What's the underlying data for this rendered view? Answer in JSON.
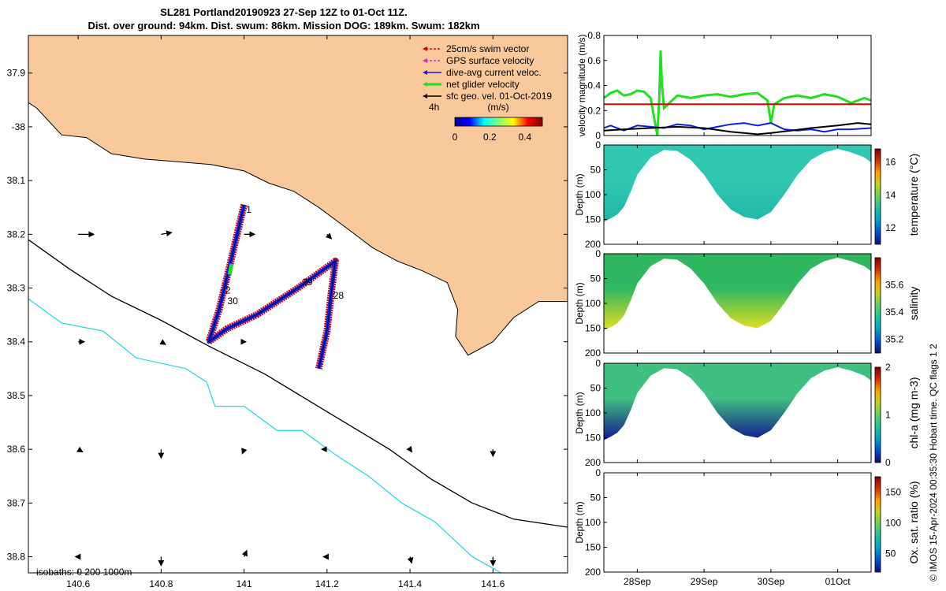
{
  "title": {
    "line1": "SL281 Portland20190923 27-Sep 12Z to 01-Oct 11Z.",
    "line2": "Dist. over ground: 94km. Dist. swum: 86km. Mission DOG: 189km. Swum: 182km"
  },
  "credit": "© IMOS 15-Apr-2024 00:35:30 Hobart time. QC flags 1  2",
  "colors": {
    "land": "#f9c99b",
    "swim": "#e00000",
    "gps": "#e020e0",
    "current": "#1020e0",
    "net": "#20e020",
    "sfc": "#000000",
    "isobath200": "#000000",
    "isobath1000": "#30d8e0"
  },
  "chart_data": [
    {
      "type": "scatter",
      "name": "map",
      "xlim": [
        140.48,
        141.78
      ],
      "ylim": [
        -38.83,
        -37.83
      ],
      "xticks": [
        140.6,
        140.8,
        141,
        141.2,
        141.4,
        141.6
      ],
      "xtick_labels": [
        "140.6",
        "140.8",
        "141",
        "141.2",
        "141.4",
        "141.6"
      ],
      "yticks": [
        -37.9,
        -38,
        -38.1,
        -38.2,
        -38.3,
        -38.4,
        -38.5,
        -38.6,
        -38.7,
        -38.8
      ],
      "ytick_labels": [
        "37.9",
        "-38",
        "38.1",
        "38.2",
        "38.3",
        "38.4",
        "38.5",
        "38.6",
        "38.7",
        "38.8"
      ],
      "legend": [
        "25cm/s swim vector",
        "GPS surface velocity",
        "dive-avg current veloc.",
        "net glider velocity",
        "sfc geo. vel. 01-Oct-2019"
      ],
      "legend_position": "top-right",
      "legend_time": "4h",
      "colorbar": {
        "label": "(m/s)",
        "ticks": [
          0,
          0.2,
          0.4
        ],
        "tick_labels": [
          "0",
          "0.2",
          "0.4"
        ],
        "range": [
          0,
          0.5
        ]
      },
      "isobath_label": "isobaths: 0   200  1000m",
      "track": [
        [
          141.0,
          -38.145
        ],
        [
          140.965,
          -38.26
        ],
        [
          140.94,
          -38.34
        ],
        [
          140.915,
          -38.4
        ],
        [
          140.96,
          -38.375
        ],
        [
          141.03,
          -38.35
        ],
        [
          141.13,
          -38.3
        ],
        [
          141.22,
          -38.25
        ],
        [
          141.21,
          -38.31
        ],
        [
          141.2,
          -38.38
        ],
        [
          141.18,
          -38.45
        ]
      ],
      "day_labels": [
        {
          "text": "1",
          "lon": 141.005,
          "lat": -38.16
        },
        {
          "text": "2",
          "lon": 140.955,
          "lat": -38.31
        },
        {
          "text": "30",
          "lon": 140.96,
          "lat": -38.33
        },
        {
          "text": "29",
          "lon": 141.14,
          "lat": -38.295
        },
        {
          "text": "28",
          "lon": 141.215,
          "lat": -38.32
        }
      ],
      "coast": [
        [
          140.48,
          -37.955
        ],
        [
          140.5,
          -37.965
        ],
        [
          140.56,
          -38.015
        ],
        [
          140.62,
          -38.02
        ],
        [
          140.68,
          -38.05
        ],
        [
          140.76,
          -38.06
        ],
        [
          140.84,
          -38.065
        ],
        [
          140.92,
          -38.07
        ],
        [
          141.0,
          -38.082
        ],
        [
          141.06,
          -38.105
        ],
        [
          141.12,
          -38.12
        ],
        [
          141.18,
          -38.15
        ],
        [
          141.25,
          -38.19
        ],
        [
          141.31,
          -38.225
        ],
        [
          141.37,
          -38.25
        ],
        [
          141.43,
          -38.268
        ],
        [
          141.49,
          -38.29
        ],
        [
          141.515,
          -38.34
        ],
        [
          141.51,
          -38.39
        ],
        [
          141.54,
          -38.425
        ],
        [
          141.6,
          -38.4
        ],
        [
          141.65,
          -38.355
        ],
        [
          141.71,
          -38.325
        ],
        [
          141.78,
          -38.325
        ]
      ],
      "isobath200": [
        [
          140.48,
          -38.21
        ],
        [
          140.58,
          -38.265
        ],
        [
          140.68,
          -38.315
        ],
        [
          140.8,
          -38.36
        ],
        [
          140.92,
          -38.41
        ],
        [
          141.05,
          -38.46
        ],
        [
          141.2,
          -38.53
        ],
        [
          141.35,
          -38.6
        ],
        [
          141.45,
          -38.655
        ],
        [
          141.55,
          -38.7
        ],
        [
          141.65,
          -38.73
        ],
        [
          141.78,
          -38.745
        ]
      ],
      "isobath1000": [
        [
          140.48,
          -38.32
        ],
        [
          140.56,
          -38.365
        ],
        [
          140.66,
          -38.38
        ],
        [
          140.74,
          -38.43
        ],
        [
          140.86,
          -38.45
        ],
        [
          140.91,
          -38.475
        ],
        [
          140.93,
          -38.52
        ],
        [
          141.0,
          -38.52
        ],
        [
          141.08,
          -38.565
        ],
        [
          141.14,
          -38.565
        ],
        [
          141.22,
          -38.61
        ],
        [
          141.3,
          -38.65
        ],
        [
          141.38,
          -38.7
        ],
        [
          141.46,
          -38.735
        ],
        [
          141.55,
          -38.8
        ],
        [
          141.62,
          -38.83
        ]
      ],
      "sfc_vectors": [
        {
          "lon": 140.6,
          "lat": -38.2,
          "u": 0.18,
          "v": 0.0
        },
        {
          "lon": 140.8,
          "lat": -38.2,
          "u": 0.12,
          "v": 0.02
        },
        {
          "lon": 141.0,
          "lat": -38.2,
          "u": 0.12,
          "v": 0.0
        },
        {
          "lon": 141.2,
          "lat": -38.2,
          "u": 0.05,
          "v": -0.05
        },
        {
          "lon": 140.6,
          "lat": -38.4,
          "u": 0.07,
          "v": 0.0
        },
        {
          "lon": 140.8,
          "lat": -38.4,
          "u": 0.05,
          "v": -0.03
        },
        {
          "lon": 141.0,
          "lat": -38.4,
          "u": 0.02,
          "v": 0.0
        },
        {
          "lon": 140.6,
          "lat": -38.6,
          "u": 0.05,
          "v": -0.03
        },
        {
          "lon": 140.8,
          "lat": -38.6,
          "u": 0.0,
          "v": -0.1
        },
        {
          "lon": 141.0,
          "lat": -38.6,
          "u": -0.02,
          "v": -0.05
        },
        {
          "lon": 141.2,
          "lat": -38.6,
          "u": -0.06,
          "v": 0.0
        },
        {
          "lon": 141.4,
          "lat": -38.6,
          "u": 0.02,
          "v": -0.03
        },
        {
          "lon": 141.6,
          "lat": -38.6,
          "u": 0.0,
          "v": -0.08
        },
        {
          "lon": 140.6,
          "lat": -38.8,
          "u": -0.03,
          "v": 0.0
        },
        {
          "lon": 140.8,
          "lat": -38.8,
          "u": 0.0,
          "v": -0.1
        },
        {
          "lon": 141.0,
          "lat": -38.8,
          "u": 0.03,
          "v": 0.07
        },
        {
          "lon": 141.2,
          "lat": -38.8,
          "u": -0.04,
          "v": 0.0
        },
        {
          "lon": 141.4,
          "lat": -38.8,
          "u": 0.02,
          "v": -0.07
        },
        {
          "lon": 141.6,
          "lat": -38.8,
          "u": 0.0,
          "v": -0.1
        }
      ]
    },
    {
      "type": "line",
      "name": "velocity",
      "ylabel": "velocity magnitude (m/s)",
      "ylim": [
        0,
        0.8
      ],
      "yticks": [
        0,
        0.2,
        0.4,
        0.6,
        0.8
      ],
      "ytick_labels": [
        "0",
        "0.2",
        "0.4",
        "0.6",
        "0.8"
      ],
      "xlim": [
        27.5,
        31.5
      ],
      "series": [
        {
          "color": "#20e020",
          "t": [
            27.5,
            27.6,
            27.7,
            27.8,
            27.9,
            28.0,
            28.1,
            28.2,
            28.3,
            28.33,
            28.35,
            28.37,
            28.4,
            28.5,
            28.6,
            28.8,
            29.0,
            29.2,
            29.4,
            29.6,
            29.8,
            29.95,
            30.0,
            30.05,
            30.2,
            30.4,
            30.6,
            30.8,
            31.0,
            31.2,
            31.4,
            31.5
          ],
          "v": [
            0.3,
            0.34,
            0.36,
            0.32,
            0.33,
            0.36,
            0.35,
            0.3,
            0.0,
            0.3,
            0.68,
            0.4,
            0.22,
            0.27,
            0.32,
            0.3,
            0.32,
            0.33,
            0.31,
            0.33,
            0.34,
            0.28,
            0.1,
            0.25,
            0.3,
            0.32,
            0.3,
            0.33,
            0.31,
            0.26,
            0.3,
            0.28
          ]
        },
        {
          "color": "#e00000",
          "t": [
            27.5,
            28.3,
            28.4,
            31.5
          ],
          "v": [
            0.25,
            0.25,
            0.25,
            0.25
          ]
        },
        {
          "color": "#1020e0",
          "t": [
            27.5,
            27.6,
            27.8,
            28.0,
            28.2,
            28.4,
            28.6,
            28.8,
            29.0,
            29.2,
            29.4,
            29.6,
            29.8,
            30.0,
            30.2,
            30.4,
            30.6,
            30.8,
            31.0,
            31.2,
            31.5
          ],
          "v": [
            0.06,
            0.08,
            0.04,
            0.08,
            0.07,
            0.06,
            0.09,
            0.08,
            0.05,
            0.07,
            0.09,
            0.1,
            0.08,
            0.1,
            0.05,
            0.04,
            0.05,
            0.03,
            0.05,
            0.05,
            0.06
          ]
        },
        {
          "color": "#000000",
          "t": [
            27.5,
            27.8,
            28.2,
            28.6,
            29.0,
            29.4,
            29.8,
            30.0,
            30.3,
            30.6,
            31.0,
            31.3,
            31.5
          ],
          "v": [
            0.04,
            0.05,
            0.06,
            0.07,
            0.06,
            0.03,
            0.01,
            0.02,
            0.04,
            0.06,
            0.08,
            0.1,
            0.09
          ]
        }
      ]
    },
    {
      "type": "heatmap",
      "name": "temperature",
      "ylabel": "Depth (m)",
      "cbar_label": "temperature (°C)",
      "cbar_ticks": [
        "12",
        "14",
        "16"
      ],
      "cbar_range": [
        11,
        16.8
      ],
      "cbar_tick_values": [
        12,
        14,
        16
      ],
      "yticks": [
        "0",
        "50",
        "100",
        "150",
        "200"
      ]
    },
    {
      "type": "heatmap",
      "name": "salinity",
      "ylabel": "Depth (m)",
      "cbar_label": "salinity",
      "cbar_ticks": [
        "35.2",
        "35.4",
        "35.6"
      ],
      "cbar_range": [
        35.1,
        35.8
      ],
      "cbar_tick_values": [
        35.2,
        35.4,
        35.6
      ],
      "yticks": [
        "0",
        "50",
        "100",
        "150",
        "200"
      ]
    },
    {
      "type": "heatmap",
      "name": "chla",
      "ylabel": "Depth (m)",
      "cbar_label": "chl-a (mg m-3)",
      "cbar_ticks": [
        "0",
        "1",
        "2"
      ],
      "cbar_range": [
        0,
        2
      ],
      "cbar_tick_values": [
        0,
        1,
        2
      ],
      "yticks": [
        "0",
        "50",
        "100",
        "150",
        "200"
      ]
    },
    {
      "type": "heatmap",
      "name": "oxygen",
      "ylabel": "Depth (m)",
      "cbar_label": "Ox. sat. ratio (%)",
      "cbar_ticks": [
        "50",
        "100",
        "150"
      ],
      "cbar_range": [
        20,
        175
      ],
      "cbar_tick_values": [
        50,
        100,
        150
      ],
      "yticks": [
        "0",
        "50",
        "100",
        "150",
        "200"
      ]
    }
  ],
  "time_axis": {
    "xlim": [
      27.5,
      31.5
    ],
    "ticks": [
      28,
      29,
      30,
      31
    ],
    "tick_labels": [
      "28Sep",
      "29Sep",
      "30Sep",
      "01Oct"
    ]
  },
  "section_profile": {
    "comment_free": true,
    "t": [
      27.5,
      27.6,
      27.7,
      27.8,
      27.9,
      28.0,
      28.2,
      28.4,
      28.6,
      28.8,
      29.0,
      29.2,
      29.4,
      29.6,
      29.8,
      30.0,
      30.2,
      30.4,
      30.6,
      30.8,
      31.0,
      31.2,
      31.4,
      31.5
    ],
    "depth": [
      155,
      148,
      140,
      125,
      95,
      60,
      25,
      10,
      12,
      30,
      60,
      100,
      130,
      145,
      150,
      135,
      100,
      60,
      30,
      15,
      8,
      15,
      25,
      35
    ]
  }
}
